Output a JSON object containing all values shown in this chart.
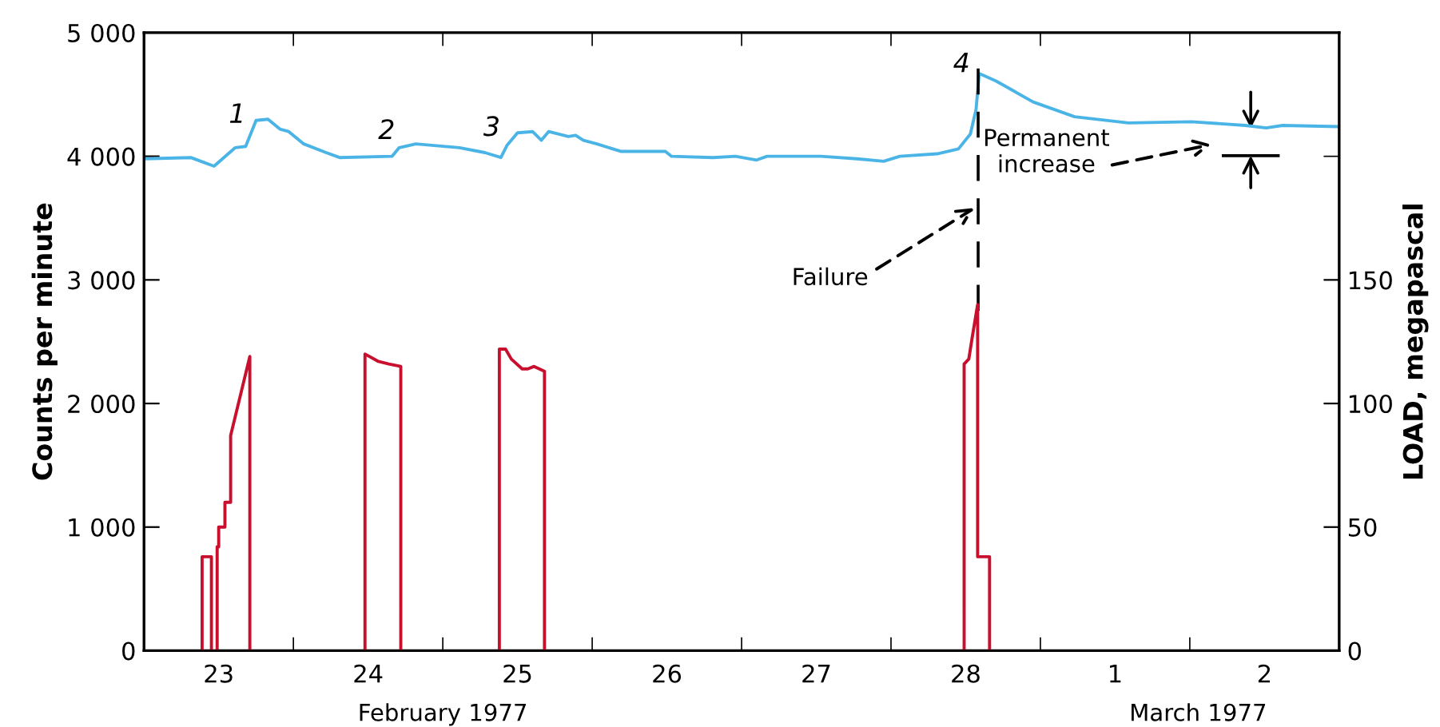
{
  "chart_data": {
    "type": "line",
    "x": [
      "1977-02-23T00:15",
      "1977-02-23T07:30",
      "1977-02-23T11:15",
      "1977-02-23T14:40",
      "1977-02-23T16:20",
      "1977-02-23T18:00",
      "1977-02-23T19:55",
      "1977-02-23T21:50",
      "1977-02-23T23:15",
      "1977-02-24T01:40",
      "1977-02-24T05:15",
      "1977-02-24T07:25",
      "1977-02-24T15:50",
      "1977-02-24T17:00",
      "1977-02-24T19:40",
      "1977-02-25T02:40",
      "1977-02-25T06:45",
      "1977-02-25T09:20",
      "1977-02-25T10:20",
      "1977-02-25T12:00",
      "1977-02-25T14:25",
      "1977-02-25T15:50",
      "1977-02-25T17:00",
      "1977-02-25T20:10",
      "1977-02-25T21:20",
      "1977-02-25T22:35",
      "1977-02-26T00:45",
      "1977-02-26T04:35",
      "1977-02-26T11:45",
      "1977-02-26T12:45",
      "1977-02-26T19:25",
      "1977-02-26T23:00",
      "1977-02-27T02:25",
      "1977-02-27T04:05",
      "1977-02-27T12:45",
      "1977-02-27T18:30",
      "1977-02-27T22:50",
      "1977-02-28T01:25",
      "1977-02-28T07:25",
      "1977-02-28T10:50",
      "1977-02-28T12:45",
      "1977-02-28T13:40",
      "1977-02-28T14:10",
      "1977-02-28T16:50",
      "1977-02-28T22:50",
      "1977-03-01T02:10",
      "1977-03-01T05:30",
      "1977-03-01T14:10",
      "1977-03-02T00:15",
      "1977-03-02T08:55",
      "1977-03-02T12:15",
      "1977-03-02T14:55",
      "1977-03-02T23:45"
    ],
    "series": [
      {
        "color": "#4bb4e6",
        "values": [
          3980,
          3990,
          3920,
          4070,
          4080,
          4290,
          4300,
          4220,
          4200,
          4100,
          4030,
          3990,
          4000,
          4070,
          4100,
          4070,
          4030,
          3990,
          4090,
          4190,
          4200,
          4130,
          4200,
          4160,
          4170,
          4130,
          4100,
          4040,
          4040,
          4000,
          3990,
          4000,
          3970,
          4000,
          4000,
          3980,
          3960,
          4000,
          4020,
          4060,
          4180,
          4380,
          4670,
          4610,
          4440,
          4380,
          4320,
          4270,
          4280,
          4250,
          4230,
          4250,
          4240
        ]
      },
      {
        "color": "#c8102e",
        "axis": "y2",
        "x": [
          "1977-02-23T09:20",
          "1977-02-23T09:20",
          "1977-02-23T10:50",
          "1977-02-23T10:50"
        ],
        "values": [
          0,
          38,
          38,
          0
        ]
      },
      {
        "color": "#c8102e",
        "axis": "y2",
        "x": [
          "1977-02-23T11:45",
          "1977-02-23T11:45",
          "1977-02-23T12:00",
          "1977-02-23T12:00",
          "1977-02-23T13:00",
          "1977-02-23T13:00",
          "1977-02-23T13:55",
          "1977-02-23T13:55",
          "1977-02-23T17:00",
          "1977-02-23T17:00"
        ],
        "values": [
          0,
          42,
          42,
          50,
          50,
          60,
          60,
          87,
          119,
          0
        ]
      },
      {
        "color": "#c8102e",
        "axis": "y2",
        "x": [
          "1977-02-24T11:30",
          "1977-02-24T11:30",
          "1977-02-24T13:40",
          "1977-02-24T15:20",
          "1977-02-24T17:15",
          "1977-02-24T17:15"
        ],
        "values": [
          0,
          120,
          117,
          116,
          115,
          0
        ]
      },
      {
        "color": "#c8102e",
        "axis": "y2",
        "x": [
          "1977-02-25T09:05",
          "1977-02-25T09:05",
          "1977-02-25T10:05",
          "1977-02-25T11:00",
          "1977-02-25T12:45",
          "1977-02-25T13:40",
          "1977-02-25T14:40",
          "1977-02-25T16:20",
          "1977-02-25T16:20"
        ],
        "values": [
          0,
          122,
          122,
          118,
          114,
          114,
          115,
          113,
          0
        ]
      },
      {
        "color": "#c8102e",
        "axis": "y2",
        "x": [
          "1977-02-28T11:45",
          "1977-02-28T11:45",
          "1977-02-28T12:30",
          "1977-02-28T13:00",
          "1977-02-28T13:55",
          "1977-02-28T13:55",
          "1977-02-28T15:50",
          "1977-02-28T15:50"
        ],
        "values": [
          0,
          116,
          118,
          126,
          140,
          38,
          38,
          0
        ]
      }
    ],
    "ylabel": "Counts per minute",
    "y2label": "LOAD, megapascal",
    "xlim": [
      "1977-02-23T00:00",
      "1977-03-03T00:00"
    ],
    "xticks": [
      {
        "value": "1977-02-23T12:00",
        "label": "23"
      },
      {
        "value": "1977-02-24T00:00",
        "label": null
      },
      {
        "value": "1977-02-24T12:00",
        "label": "24"
      },
      {
        "value": "1977-02-25T00:00",
        "label": null
      },
      {
        "value": "1977-02-25T12:00",
        "label": "25"
      },
      {
        "value": "1977-02-26T00:00",
        "label": null
      },
      {
        "value": "1977-02-26T12:00",
        "label": "26"
      },
      {
        "value": "1977-02-27T00:00",
        "label": null
      },
      {
        "value": "1977-02-27T12:00",
        "label": "27"
      },
      {
        "value": "1977-02-28T00:00",
        "label": null
      },
      {
        "value": "1977-02-28T12:00",
        "label": "28"
      },
      {
        "value": "1977-03-01T00:00",
        "label": null
      },
      {
        "value": "1977-03-01T12:00",
        "label": "1"
      },
      {
        "value": "1977-03-02T00:00",
        "label": null
      },
      {
        "value": "1977-03-02T12:00",
        "label": "2"
      }
    ],
    "ylim": [
      0,
      5000
    ],
    "yticks": [
      0,
      {
        "value": 1000,
        "label": "1 000"
      },
      {
        "value": 2000,
        "label": "2 000"
      },
      {
        "value": 3000,
        "label": "3 000"
      },
      {
        "value": 4000,
        "label": "4 000"
      },
      {
        "value": 5000,
        "label": "5 000"
      }
    ],
    "y2lim": [
      0,
      250
    ],
    "y2ticks": [
      0,
      50,
      100,
      150,
      {
        "value": 200,
        "label": null
      }
    ],
    "ref_lines": [
      {
        "axis": "x",
        "value": "1977-02-28T14:00",
        "color": "#000000",
        "line_style": "dashed"
      }
    ],
    "annotations": [
      "February 1977",
      "March 1977",
      "1",
      "2",
      "3",
      "4",
      {
        "text": "Failure",
        "x": "1977-02-28T14:00",
        "y": 3600
      },
      "Permanent\nincrease"
    ],
    "grid": false,
    "marker": "none",
    "line_style": "solid"
  }
}
